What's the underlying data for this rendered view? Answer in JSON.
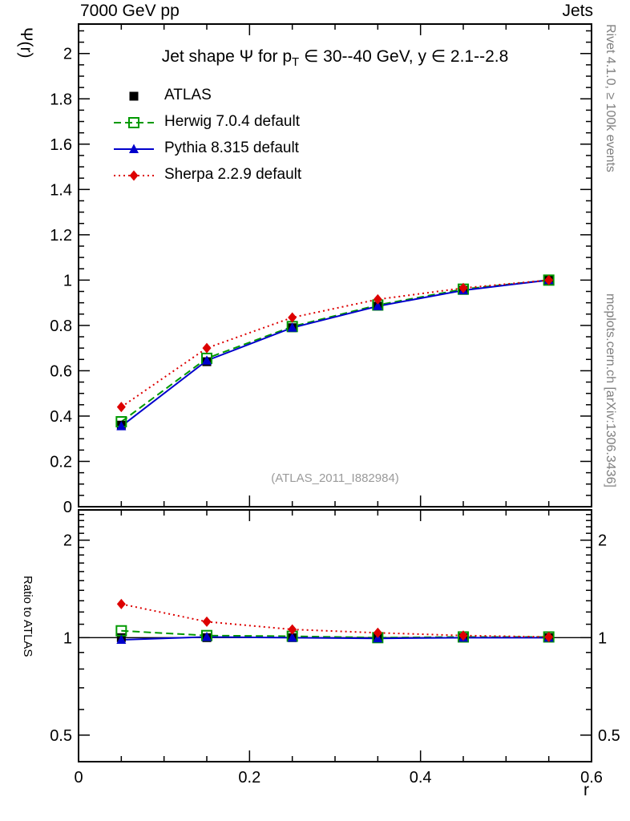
{
  "header": {
    "left": "7000 GeV pp",
    "right": "Jets"
  },
  "title": {
    "pre": "Jet shape Ψ for p",
    "sub": "T",
    "post": " ∈ 30--40 GeV, y ∈ 2.1--2.8"
  },
  "watermark": "(ATLAS_2011_I882984)",
  "side_texts": {
    "rivet": "Rivet 4.1.0, ≥ 100k events",
    "mcplots": "mcplots.cern.ch [arXiv:1306.3436]"
  },
  "axis_titles": {
    "main_y": "Ψ(r)",
    "ratio_y": "Ratio to ATLAS",
    "x": "r"
  },
  "chart_data": [
    {
      "type": "line",
      "title": "Jet shape Ψ for p_T ∈ 30--40 GeV, y ∈ 2.1--2.8",
      "xlabel": "r",
      "ylabel": "Ψ(r)",
      "xlim": [
        0,
        0.6
      ],
      "ylim": [
        0,
        2.13
      ],
      "xticks": [
        0,
        0.2,
        0.4,
        0.6
      ],
      "yticks": [
        0,
        0.2,
        0.4,
        0.6,
        0.8,
        1,
        1.2,
        1.4,
        1.6,
        1.8,
        2
      ],
      "grid": false,
      "legend_position": "top-left",
      "x": [
        0.05,
        0.15,
        0.25,
        0.35,
        0.45,
        0.55
      ],
      "series": [
        {
          "name": "ATLAS",
          "color": "#000000",
          "marker": "square-filled",
          "line": "none",
          "values": [
            0.36,
            0.64,
            0.79,
            0.885,
            0.955,
            1.0
          ]
        },
        {
          "name": "Herwig 7.0.4 default",
          "color": "#009900",
          "marker": "square-open",
          "line": "dashed",
          "values": [
            0.375,
            0.655,
            0.795,
            0.89,
            0.96,
            1.0
          ]
        },
        {
          "name": "Pythia 8.315 default",
          "color": "#0000cc",
          "marker": "triangle-filled",
          "line": "solid",
          "values": [
            0.355,
            0.645,
            0.79,
            0.885,
            0.955,
            1.0
          ]
        },
        {
          "name": "Sherpa 2.2.9 default",
          "color": "#dd0000",
          "marker": "diamond-filled",
          "line": "dotted",
          "values": [
            0.44,
            0.7,
            0.835,
            0.915,
            0.965,
            1.0
          ]
        }
      ]
    },
    {
      "type": "line",
      "title": "",
      "xlabel": "r",
      "ylabel": "Ratio to ATLAS",
      "yscale": "log",
      "xlim": [
        0,
        0.6
      ],
      "ylim": [
        0.414,
        2.48
      ],
      "xticks": [
        0,
        0.2,
        0.4,
        0.6
      ],
      "yticks": [
        0.5,
        1,
        2
      ],
      "yminor": [
        0.6,
        0.7,
        0.8,
        0.9,
        1.1,
        1.2,
        1.3,
        1.4,
        1.5,
        1.6,
        1.7,
        1.8,
        1.9,
        2.1,
        2.2,
        2.3,
        2.4
      ],
      "reference_line": 1,
      "grid": false,
      "x": [
        0.05,
        0.15,
        0.25,
        0.35,
        0.45,
        0.55
      ],
      "series": [
        {
          "name": "ATLAS",
          "color": "#000000",
          "marker": "square-filled",
          "line": "none",
          "values": [
            1,
            1,
            1,
            1,
            1,
            1
          ]
        },
        {
          "name": "Herwig 7.0.4 default",
          "color": "#009900",
          "marker": "square-open",
          "line": "dashed",
          "values": [
            1.05,
            1.015,
            1.01,
            1.0,
            1.005,
            1.005
          ]
        },
        {
          "name": "Pythia 8.315 default",
          "color": "#0000cc",
          "marker": "triangle-filled",
          "line": "solid",
          "values": [
            0.985,
            1.005,
            1.0,
            0.995,
            1.0,
            1.0
          ]
        },
        {
          "name": "Sherpa 2.2.9 default",
          "color": "#dd0000",
          "marker": "diamond-filled",
          "line": "dotted",
          "values": [
            1.27,
            1.12,
            1.06,
            1.035,
            1.015,
            1.005
          ]
        }
      ]
    }
  ]
}
